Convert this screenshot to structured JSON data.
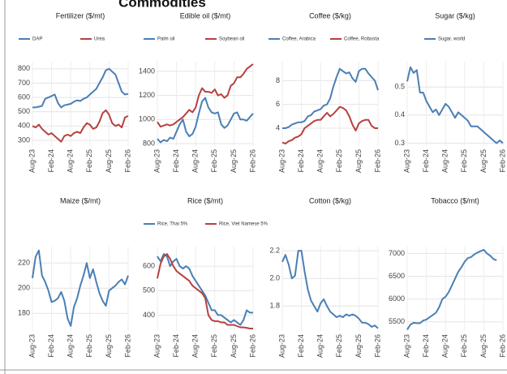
{
  "title": "Commodities",
  "chart_data": [
    {
      "type": "line",
      "title": "Fertilizer ($/mt)",
      "categories": [
        "Aug-23",
        null,
        null,
        null,
        null,
        null,
        "Feb-24",
        null,
        null,
        null,
        null,
        null,
        "Aug-24",
        null,
        null,
        null,
        null,
        null,
        "Feb-25",
        null,
        null,
        null,
        null,
        null,
        "Aug-25",
        null,
        null,
        null,
        null,
        null,
        "Feb-26"
      ],
      "series": [
        {
          "name": "DAP",
          "color": "#4a7fb5",
          "values": [
            530,
            530,
            535,
            540,
            590,
            600,
            610,
            620,
            560,
            530,
            545,
            550,
            555,
            570,
            580,
            575,
            590,
            600,
            620,
            640,
            660,
            700,
            740,
            790,
            800,
            780,
            760,
            700,
            640,
            620,
            625
          ]
        },
        {
          "name": "Urea",
          "color": "#b84040",
          "values": [
            400,
            390,
            410,
            380,
            360,
            340,
            350,
            330,
            310,
            290,
            330,
            340,
            330,
            350,
            360,
            350,
            390,
            420,
            410,
            380,
            390,
            430,
            490,
            510,
            480,
            420,
            400,
            410,
            390,
            460,
            470
          ]
        }
      ],
      "ylim": [
        260,
        850
      ],
      "yticks": [
        300,
        400,
        500,
        600,
        700,
        800
      ],
      "grid": true
    },
    {
      "type": "line",
      "title": "Edible oil ($/mt)",
      "categories": [
        "Aug-23",
        null,
        null,
        null,
        null,
        null,
        "Feb-24",
        null,
        null,
        null,
        null,
        null,
        "Aug-24",
        null,
        null,
        null,
        null,
        null,
        "Feb-25",
        null,
        null,
        null,
        null,
        null,
        "Aug-25",
        null,
        null,
        null,
        null,
        null,
        "Feb-26"
      ],
      "series": [
        {
          "name": "Palm oil",
          "color": "#4a7fb5",
          "values": [
            840,
            810,
            830,
            820,
            850,
            840,
            900,
            960,
            1000,
            900,
            860,
            880,
            940,
            1050,
            1150,
            1180,
            1100,
            1060,
            1050,
            1060,
            960,
            930,
            950,
            1000,
            1050,
            1060,
            1000,
            1000,
            990,
            1020,
            1050
          ]
        },
        {
          "name": "Soybean oil",
          "color": "#b84040",
          "values": [
            980,
            940,
            950,
            960,
            950,
            960,
            980,
            1000,
            1020,
            1050,
            1080,
            1060,
            1100,
            1200,
            1260,
            1230,
            1230,
            1220,
            1250,
            1200,
            1210,
            1180,
            1200,
            1280,
            1300,
            1350,
            1350,
            1380,
            1420,
            1440,
            1460
          ]
        }
      ],
      "ylim": [
        780,
        1480
      ],
      "yticks": [
        800,
        1000,
        1200,
        1400
      ],
      "grid": true
    },
    {
      "type": "line",
      "title": "Coffee ($/kg)",
      "categories": [
        "Aug-23",
        null,
        null,
        null,
        null,
        null,
        "Feb-24",
        null,
        null,
        null,
        null,
        null,
        "Aug-24",
        null,
        null,
        null,
        null,
        null,
        "Feb-25",
        null,
        null,
        null,
        null,
        null,
        "Aug-25",
        null,
        null,
        null,
        null,
        null,
        "Feb-26"
      ],
      "series": [
        {
          "name": "Coffee, Arabica",
          "color": "#4a7fb5",
          "values": [
            4.0,
            4.0,
            4.1,
            4.3,
            4.4,
            4.5,
            4.5,
            4.6,
            5.0,
            5.1,
            5.4,
            5.5,
            5.6,
            5.9,
            6.0,
            6.5,
            7.5,
            8.3,
            9.0,
            8.8,
            8.6,
            8.7,
            8.2,
            7.9,
            8.8,
            9.0,
            9.0,
            8.6,
            8.3,
            8.0,
            7.2
          ]
        },
        {
          "name": "Coffee, Robusta",
          "color": "#b84040",
          "values": [
            2.8,
            2.7,
            2.9,
            3.0,
            3.2,
            3.3,
            3.5,
            4.0,
            4.2,
            4.4,
            4.6,
            4.7,
            4.7,
            5.0,
            5.3,
            5.0,
            5.2,
            5.5,
            5.8,
            5.7,
            5.5,
            5.0,
            4.3,
            3.8,
            4.4,
            4.6,
            4.7,
            4.7,
            4.2,
            4.0,
            4.0
          ]
        }
      ],
      "ylim": [
        2.5,
        9.6
      ],
      "yticks": [
        4,
        6,
        8
      ],
      "grid": true
    },
    {
      "type": "line",
      "title": "Sugar ($/kg)",
      "categories": [
        "Aug-23",
        null,
        null,
        null,
        null,
        null,
        "Feb-24",
        null,
        null,
        null,
        null,
        null,
        "Aug-24",
        null,
        null,
        null,
        null,
        null,
        "Feb-25",
        null,
        null,
        null,
        null,
        null,
        "Aug-25",
        null,
        null,
        null,
        null,
        null,
        "Feb-26"
      ],
      "series": [
        {
          "name": "Sugar, world",
          "color": "#4a7fb5",
          "values": [
            0.52,
            0.57,
            0.55,
            0.56,
            0.48,
            0.48,
            0.45,
            0.43,
            0.41,
            0.42,
            0.4,
            0.42,
            0.44,
            0.43,
            0.41,
            0.39,
            0.41,
            0.4,
            0.39,
            0.38,
            0.36,
            0.36,
            0.36,
            0.35,
            0.34,
            0.33,
            0.32,
            0.31,
            0.3,
            0.31,
            0.3
          ]
        }
      ],
      "ylim": [
        0.29,
        0.59
      ],
      "yticks": [
        0.3,
        0.4,
        0.5
      ],
      "grid": true
    },
    {
      "type": "line",
      "title": "Maize ($/mt)",
      "categories": [
        "Aug-23",
        null,
        null,
        null,
        null,
        null,
        "Feb-24",
        null,
        null,
        null,
        null,
        null,
        "Aug-24",
        null,
        null,
        null,
        null,
        null,
        "Feb-25",
        null,
        null,
        null,
        null,
        null,
        "Aug-25",
        null,
        null,
        null,
        null,
        null,
        "Feb-26"
      ],
      "values": [
        208,
        225,
        230,
        210,
        205,
        198,
        189,
        190,
        192,
        197,
        190,
        176,
        170,
        185,
        192,
        202,
        210,
        220,
        208,
        215,
        205,
        196,
        190,
        186,
        198,
        200,
        202,
        205,
        207,
        203,
        210
      ],
      "color": "#4a7fb5",
      "ylim": [
        166,
        233
      ],
      "yticks": [
        180,
        200,
        220
      ],
      "grid": true
    },
    {
      "type": "line",
      "title": "Rice ($/mt)",
      "categories": [
        "Aug-23",
        null,
        null,
        null,
        null,
        null,
        "Feb-24",
        null,
        null,
        null,
        null,
        null,
        "Aug-24",
        null,
        null,
        null,
        null,
        null,
        "Feb-25",
        null,
        null,
        null,
        null,
        null,
        "Aug-25",
        null,
        null,
        null,
        null,
        null,
        "Feb-26"
      ],
      "series": [
        {
          "name": "Rice, Thai 5%",
          "color": "#4a7fb5",
          "values": [
            640,
            620,
            650,
            640,
            600,
            620,
            630,
            600,
            590,
            600,
            590,
            560,
            540,
            520,
            500,
            480,
            450,
            420,
            420,
            400,
            400,
            390,
            380,
            370,
            380,
            370,
            360,
            380,
            420,
            410,
            410
          ]
        },
        {
          "name": "Rice, Viet Namese 5%",
          "color": "#b84040",
          "values": [
            550,
            610,
            640,
            650,
            630,
            600,
            580,
            570,
            560,
            550,
            540,
            520,
            510,
            500,
            490,
            470,
            400,
            380,
            375,
            375,
            370,
            370,
            360,
            360,
            360,
            355,
            350,
            350,
            348,
            345,
            345
          ]
        }
      ],
      "ylim": [
        335,
        680
      ],
      "yticks": [
        400,
        500,
        600
      ],
      "grid": true
    },
    {
      "type": "line",
      "title": "Cotton ($/kg)",
      "categories": [
        "Aug-23",
        null,
        null,
        null,
        null,
        null,
        "Feb-24",
        null,
        null,
        null,
        null,
        null,
        "Aug-24",
        null,
        null,
        null,
        null,
        null,
        "Feb-25",
        null,
        null,
        null,
        null,
        null,
        "Aug-25",
        null,
        null,
        null,
        null,
        null,
        "Feb-26"
      ],
      "values": [
        2.12,
        2.17,
        2.1,
        2.0,
        2.02,
        2.2,
        2.2,
        2.05,
        1.92,
        1.84,
        1.8,
        1.76,
        1.82,
        1.85,
        1.8,
        1.76,
        1.74,
        1.72,
        1.73,
        1.72,
        1.74,
        1.73,
        1.74,
        1.73,
        1.71,
        1.68,
        1.68,
        1.67,
        1.65,
        1.66,
        1.64
      ],
      "color": "#4a7fb5",
      "ylim": [
        1.62,
        2.23
      ],
      "yticks": [
        1.8,
        {
          "value": 2,
          "label": "2.0"
        },
        2.2
      ],
      "grid": true
    },
    {
      "type": "line",
      "title": "Tobacco ($/mt)",
      "categories": [
        "Aug-23",
        null,
        null,
        null,
        null,
        null,
        "Feb-24",
        null,
        null,
        null,
        null,
        null,
        "Aug-24",
        null,
        null,
        null,
        null,
        null,
        "Feb-25",
        null,
        null,
        null,
        null,
        null,
        "Aug-25",
        null,
        null,
        null,
        null,
        null,
        "Feb-26"
      ],
      "values": [
        5330,
        5440,
        5480,
        5470,
        5470,
        5530,
        5550,
        5600,
        5650,
        5700,
        5820,
        6000,
        6050,
        6150,
        6300,
        6450,
        6600,
        6700,
        6820,
        6900,
        6920,
        6980,
        7020,
        7050,
        7080,
        7000,
        6950,
        6880,
        6850,
        null,
        null
      ],
      "color": "#4a7fb5",
      "ylim": [
        5300,
        7150
      ],
      "yticks": [
        5500,
        6000,
        6500,
        7000
      ],
      "grid": true
    }
  ]
}
